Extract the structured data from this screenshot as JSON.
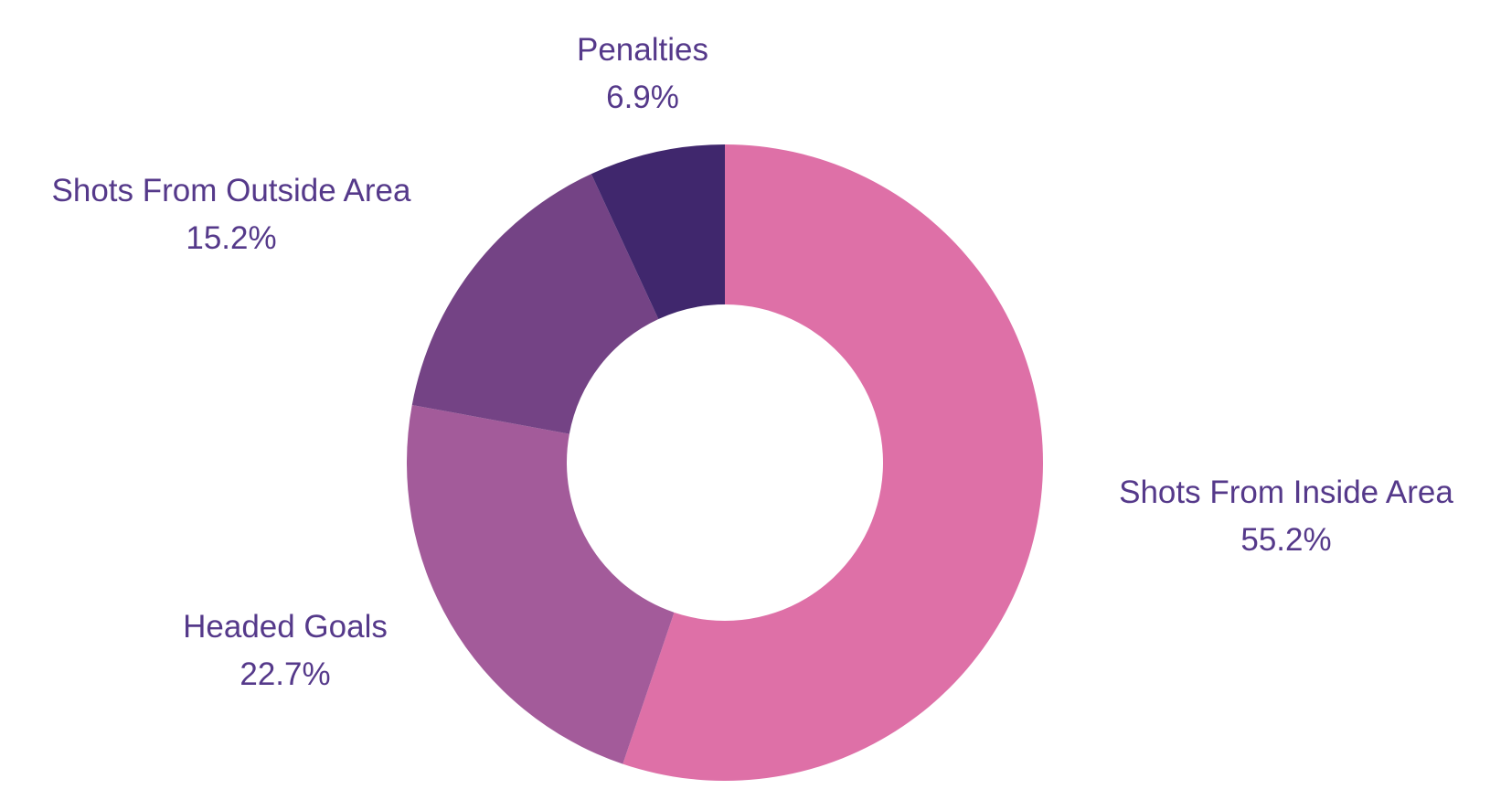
{
  "chart_data": {
    "type": "pie",
    "donut": true,
    "title": "",
    "slices": [
      {
        "label": "Shots From Inside Area",
        "value": 55.2,
        "value_label": "55.2%",
        "color": "#de70a7"
      },
      {
        "label": "Headed Goals",
        "value": 22.7,
        "value_label": "22.7%",
        "color": "#a35b9a"
      },
      {
        "label": "Shots From Outside Area",
        "value": 15.2,
        "value_label": "15.2%",
        "color": "#744385"
      },
      {
        "label": "Penalties",
        "value": 6.9,
        "value_label": "6.9%",
        "color": "#40276d"
      }
    ],
    "label_color": "#55398a",
    "legend": "none"
  }
}
